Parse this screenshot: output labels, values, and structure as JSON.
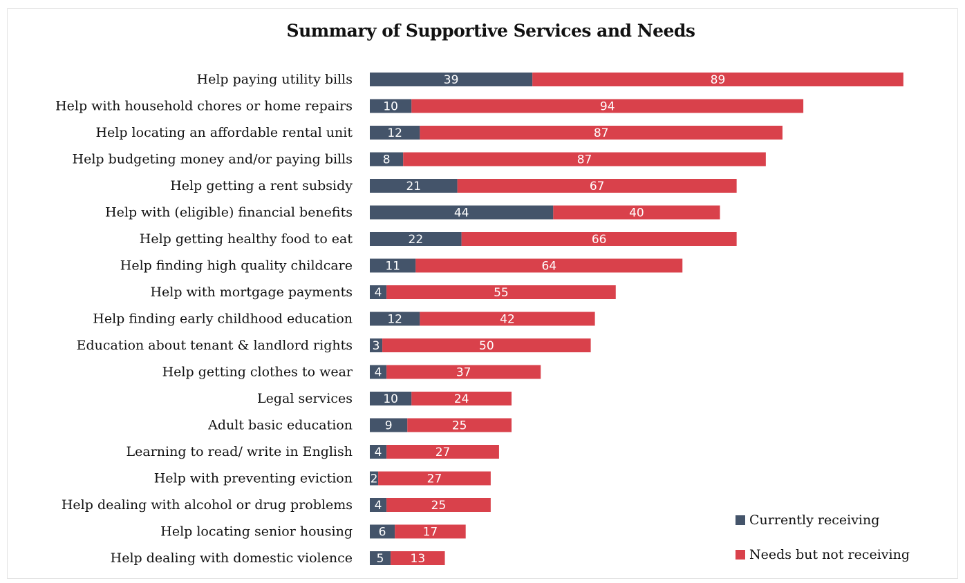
{
  "chart_data": {
    "type": "bar",
    "orientation": "horizontal",
    "stacked": true,
    "title": "Summary of Supportive Services and Needs",
    "categories": [
      "Help paying utility bills",
      "Help with household chores or home repairs",
      "Help locating an affordable rental unit",
      "Help budgeting money and/or paying bills",
      "Help getting a rent subsidy",
      "Help with (eligible) financial benefits",
      "Help getting healthy food to eat",
      "Help finding high quality childcare",
      "Help with mortgage payments",
      "Help finding early childhood education",
      "Education about tenant & landlord rights",
      "Help getting clothes to wear",
      "Legal services",
      "Adult basic education",
      "Learning to read/ write in English",
      "Help with preventing eviction",
      "Help dealing with alcohol or drug problems",
      "Help locating senior housing",
      "Help dealing with domestic violence"
    ],
    "series": [
      {
        "name": "Currently receiving",
        "color": "#44546a",
        "values": [
          39,
          10,
          12,
          8,
          21,
          44,
          22,
          11,
          4,
          12,
          3,
          4,
          10,
          9,
          4,
          2,
          4,
          6,
          5
        ]
      },
      {
        "name": "Needs but not receiving",
        "color": "#d9414b",
        "values": [
          89,
          94,
          87,
          87,
          67,
          40,
          66,
          64,
          55,
          42,
          50,
          37,
          24,
          25,
          27,
          27,
          25,
          17,
          13
        ]
      }
    ],
    "xlim": [
      0,
      128
    ],
    "grid": false,
    "data_labels": true,
    "legend_position": "bottom-right"
  }
}
